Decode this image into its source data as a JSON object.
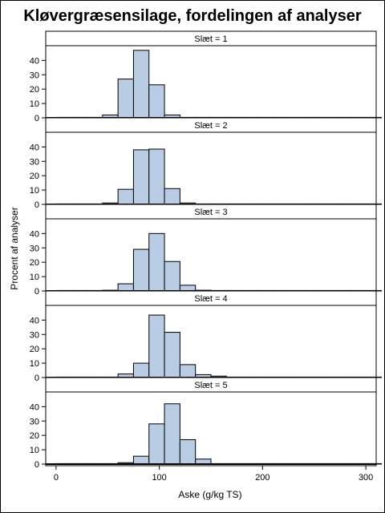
{
  "title": "Kløvergræsensilage, fordelingen af analyser",
  "chart_data": {
    "type": "bar",
    "subtype": "histogram-panel",
    "title": "Kløvergræsensilage, fordelingen af analyser",
    "xlabel": "Aske (g/kg TS)",
    "ylabel": "Procent af analyser",
    "xlim": [
      -10,
      310
    ],
    "ylim": [
      0,
      48
    ],
    "x_ticks": [
      0,
      100,
      200,
      300
    ],
    "y_ticks": [
      0,
      10,
      20,
      30,
      40
    ],
    "bin_width": 15,
    "bin_starts": [
      0,
      15,
      30,
      45,
      60,
      75,
      90,
      105,
      120,
      135,
      150,
      165,
      180,
      195,
      210,
      225,
      240,
      255,
      270,
      285,
      300
    ],
    "bar_color": "#b8cce4",
    "edge_color": "#000000",
    "grid": false,
    "panels": [
      {
        "label": "Slæt = 1",
        "values": [
          0,
          0.2,
          0.3,
          2,
          27,
          47,
          23,
          2,
          0.2,
          0,
          0,
          0,
          0,
          0,
          0,
          0,
          0,
          0,
          0,
          0,
          0
        ]
      },
      {
        "label": "Slæt = 2",
        "values": [
          0,
          0.2,
          0.3,
          1,
          10.5,
          38,
          38.5,
          11,
          1,
          0.2,
          0.1,
          0.1,
          0,
          0,
          0,
          0,
          0,
          0,
          0,
          0,
          0
        ]
      },
      {
        "label": "Slæt = 3",
        "values": [
          0,
          0,
          0.1,
          0.5,
          5,
          29,
          40,
          20.5,
          4,
          0.5,
          0.1,
          0,
          0,
          0,
          0,
          0,
          0,
          0,
          0,
          0,
          0
        ]
      },
      {
        "label": "Slæt = 4",
        "values": [
          0,
          0.2,
          0.1,
          0.2,
          2.5,
          10,
          43.5,
          31.5,
          9,
          2,
          1,
          0.3,
          0.1,
          0,
          0,
          0,
          0,
          0,
          0,
          0,
          0
        ]
      },
      {
        "label": "Slæt = 5",
        "values": [
          0,
          0,
          0.1,
          0.2,
          1,
          5.5,
          28,
          42,
          17,
          3.5,
          0.3,
          0.2,
          0.2,
          0.2,
          0,
          0.2,
          0,
          0,
          0,
          0,
          0.3
        ]
      }
    ]
  }
}
